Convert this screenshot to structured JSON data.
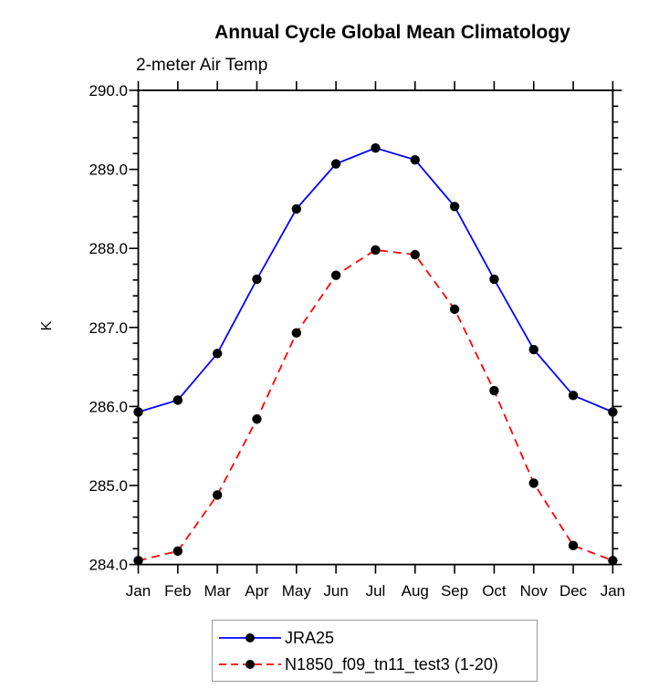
{
  "page": {
    "background": "#ffffff"
  },
  "chart_data": {
    "type": "line",
    "title": "Annual Cycle Global Mean Climatology",
    "subtitle": "2-meter Air Temp",
    "xlabel": "",
    "ylabel": "K",
    "categories": [
      "Jan",
      "Feb",
      "Mar",
      "Apr",
      "May",
      "Jun",
      "Jul",
      "Aug",
      "Sep",
      "Oct",
      "Nov",
      "Dec",
      "Jan"
    ],
    "ylim": [
      284.0,
      290.0
    ],
    "ytick_labels": [
      "290.0",
      "289.0",
      "288.0",
      "287.0",
      "286.0",
      "285.0",
      "284.0"
    ],
    "ytick_interval": 1.0,
    "ytick_minor_interval": 0.2,
    "grid": false,
    "legend_position": "bottom",
    "axis_color": "#000000",
    "marker_color": "#000000",
    "series": [
      {
        "name": "JRA25",
        "color": "#0000ff",
        "line_style": "solid",
        "marker": "filled-circle",
        "values": [
          285.93,
          286.08,
          286.67,
          287.61,
          288.5,
          289.07,
          289.27,
          289.12,
          288.53,
          287.61,
          286.72,
          286.14,
          285.93
        ]
      },
      {
        "name": "N1850_f09_tn11_test3 (1-20)",
        "color": "#ff0000",
        "line_style": "dashed",
        "marker": "filled-circle",
        "values": [
          284.05,
          284.17,
          284.88,
          285.84,
          286.93,
          287.66,
          287.98,
          287.92,
          287.23,
          286.2,
          285.03,
          284.24,
          284.05
        ]
      }
    ]
  }
}
